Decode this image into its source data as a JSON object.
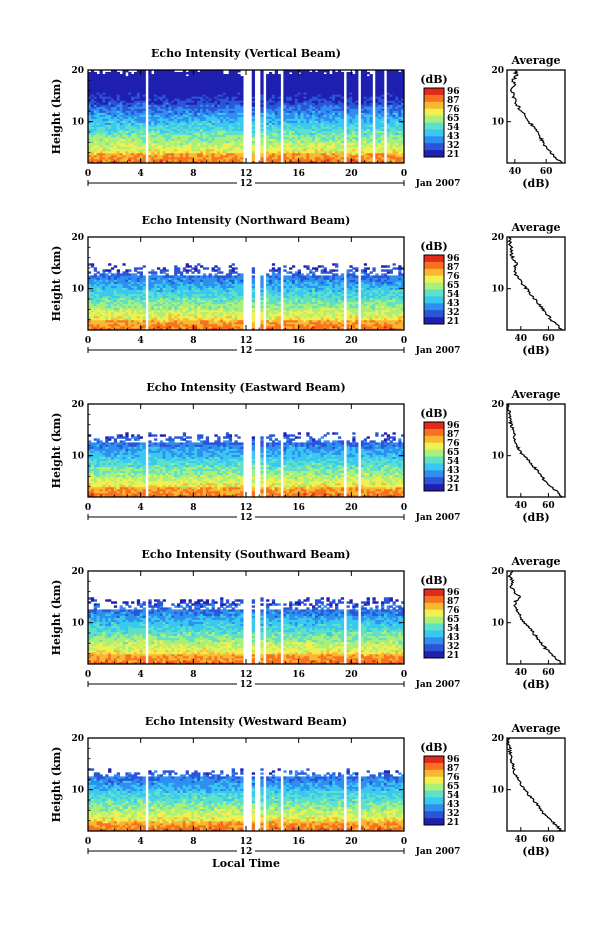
{
  "figure": {
    "xaxis_label": "Local Time",
    "colorbar_unit": "(dB)",
    "colorbar_ticks": [
      "96",
      "87",
      "76",
      "65",
      "54",
      "43",
      "32",
      "21"
    ],
    "date_label": "Jan 2007",
    "day_marker": "12",
    "avg_title": "Average",
    "avg_xlabel": "(dB)",
    "height_label": "Height (km)",
    "colormap": [
      "#1f1fb0",
      "#2a55d8",
      "#2f8ff0",
      "#39c8f0",
      "#5fe0c8",
      "#a8f07a",
      "#f0f050",
      "#f8b830",
      "#f87020",
      "#e02a1a"
    ]
  },
  "chart_data": [
    {
      "type": "heatmap",
      "title": "Echo Intensity (Vertical Beam)",
      "x_ticks": [
        "0",
        "4",
        "8",
        "12",
        "16",
        "20",
        "0"
      ],
      "x_range": [
        0,
        24
      ],
      "y_ticks": [
        "20",
        "10"
      ],
      "y_range": [
        2,
        20
      ],
      "ylabel": "Height (km)",
      "z_range": [
        21,
        96
      ],
      "top_km": 19.5,
      "data_gaps_hours": [
        [
          4.3,
          4.6
        ],
        [
          11.7,
          12.4
        ],
        [
          12.7,
          13.0
        ],
        [
          13.4,
          13.6
        ],
        [
          14.7,
          14.9
        ],
        [
          19.4,
          19.6
        ],
        [
          20.5,
          20.7
        ],
        [
          21.6,
          21.8
        ],
        [
          22.4,
          22.6
        ]
      ],
      "average_profile": {
        "title": "Average",
        "xlabel": "(dB)",
        "x_ticks": [
          "40",
          "60"
        ],
        "x_range": [
          35,
          72
        ],
        "y_ticks": [
          "20",
          "10"
        ],
        "height_km": [
          2,
          3,
          4,
          5,
          6,
          7,
          8,
          9,
          10,
          11,
          12,
          13,
          14,
          15,
          16,
          17,
          18,
          19,
          20
        ],
        "db": [
          70,
          66,
          63,
          60,
          58,
          56,
          54,
          52,
          49,
          47,
          44,
          42,
          40,
          39,
          38,
          40,
          39,
          41,
          40
        ]
      }
    },
    {
      "type": "heatmap",
      "title": "Echo Intensity (Northward Beam)",
      "x_ticks": [
        "0",
        "4",
        "8",
        "12",
        "16",
        "20",
        "0"
      ],
      "x_range": [
        0,
        24
      ],
      "y_ticks": [
        "20",
        "10"
      ],
      "y_range": [
        2,
        20
      ],
      "ylabel": "Height (km)",
      "z_range": [
        21,
        96
      ],
      "top_km": 14.5,
      "data_gaps_hours": [
        [
          4.3,
          4.6
        ],
        [
          11.7,
          12.4
        ],
        [
          12.7,
          13.0
        ],
        [
          13.4,
          13.6
        ],
        [
          14.7,
          14.9
        ],
        [
          19.4,
          19.6
        ],
        [
          20.5,
          20.7
        ]
      ],
      "average_profile": {
        "title": "Average",
        "xlabel": "(dB)",
        "x_ticks": [
          "40",
          "60"
        ],
        "x_range": [
          30,
          72
        ],
        "y_ticks": [
          "20",
          "10"
        ],
        "height_km": [
          2,
          3,
          4,
          5,
          6,
          7,
          8,
          9,
          10,
          11,
          12,
          13,
          14,
          15,
          16,
          17,
          18,
          19,
          20
        ],
        "db": [
          70,
          66,
          62,
          59,
          56,
          53,
          50,
          47,
          44,
          41,
          38,
          36,
          35,
          37,
          34,
          33,
          33,
          32,
          32
        ]
      }
    },
    {
      "type": "heatmap",
      "title": "Echo Intensity (Eastward Beam)",
      "x_ticks": [
        "0",
        "4",
        "8",
        "12",
        "16",
        "20",
        "0"
      ],
      "x_range": [
        0,
        24
      ],
      "y_ticks": [
        "20",
        "10"
      ],
      "y_range": [
        2,
        20
      ],
      "ylabel": "Height (km)",
      "z_range": [
        21,
        96
      ],
      "top_km": 14.0,
      "data_gaps_hours": [
        [
          4.3,
          4.6
        ],
        [
          11.7,
          12.4
        ],
        [
          12.7,
          13.0
        ],
        [
          13.4,
          13.6
        ],
        [
          14.7,
          14.9
        ],
        [
          19.4,
          19.6
        ],
        [
          20.5,
          20.7
        ]
      ],
      "average_profile": {
        "title": "Average",
        "xlabel": "(dB)",
        "x_ticks": [
          "40",
          "60"
        ],
        "x_range": [
          30,
          72
        ],
        "y_ticks": [
          "20",
          "10"
        ],
        "height_km": [
          2,
          3,
          4,
          5,
          6,
          7,
          8,
          9,
          10,
          11,
          12,
          13,
          14,
          15,
          16,
          17,
          18,
          19,
          20
        ],
        "db": [
          70,
          66,
          62,
          58,
          55,
          52,
          49,
          46,
          42,
          39,
          37,
          36,
          35,
          34,
          33,
          32,
          32,
          31,
          31
        ]
      }
    },
    {
      "type": "heatmap",
      "title": "Echo Intensity (Southward Beam)",
      "x_ticks": [
        "0",
        "4",
        "8",
        "12",
        "16",
        "20",
        "0"
      ],
      "x_range": [
        0,
        24
      ],
      "y_ticks": [
        "20",
        "10"
      ],
      "y_range": [
        2,
        20
      ],
      "ylabel": "Height (km)",
      "z_range": [
        21,
        96
      ],
      "top_km": 14.5,
      "data_gaps_hours": [
        [
          4.3,
          4.6
        ],
        [
          11.7,
          12.4
        ],
        [
          12.7,
          13.0
        ],
        [
          13.4,
          13.6
        ],
        [
          14.7,
          14.9
        ],
        [
          19.4,
          19.6
        ],
        [
          20.5,
          20.7
        ]
      ],
      "average_profile": {
        "title": "Average",
        "xlabel": "(dB)",
        "x_ticks": [
          "40",
          "60"
        ],
        "x_range": [
          30,
          72
        ],
        "y_ticks": [
          "20",
          "10"
        ],
        "height_km": [
          2,
          3,
          4,
          5,
          6,
          7,
          8,
          9,
          10,
          11,
          12,
          13,
          14,
          15,
          16,
          17,
          18,
          19,
          20
        ],
        "db": [
          70,
          66,
          62,
          58,
          55,
          52,
          49,
          46,
          43,
          40,
          38,
          36,
          36,
          39,
          35,
          33,
          34,
          32,
          33
        ]
      }
    },
    {
      "type": "heatmap",
      "title": "Echo Intensity (Westward Beam)",
      "x_ticks": [
        "0",
        "4",
        "8",
        "12",
        "16",
        "20",
        "0"
      ],
      "x_range": [
        0,
        24
      ],
      "y_ticks": [
        "20",
        "10"
      ],
      "y_range": [
        2,
        20
      ],
      "ylabel": "Height (km)",
      "z_range": [
        21,
        96
      ],
      "top_km": 13.5,
      "data_gaps_hours": [
        [
          4.3,
          4.6
        ],
        [
          11.7,
          12.4
        ],
        [
          12.7,
          13.0
        ],
        [
          13.4,
          13.6
        ],
        [
          14.7,
          14.9
        ],
        [
          19.4,
          19.6
        ],
        [
          20.5,
          20.7
        ]
      ],
      "average_profile": {
        "title": "Average",
        "xlabel": "(dB)",
        "x_ticks": [
          "40",
          "60"
        ],
        "x_range": [
          30,
          72
        ],
        "y_ticks": [
          "20",
          "10"
        ],
        "height_km": [
          2,
          3,
          4,
          5,
          6,
          7,
          8,
          9,
          10,
          11,
          12,
          13,
          14,
          15,
          16,
          17,
          18,
          19,
          20
        ],
        "db": [
          70,
          66,
          62,
          58,
          55,
          52,
          49,
          46,
          43,
          40,
          38,
          36,
          35,
          34,
          33,
          32,
          32,
          31,
          31
        ]
      }
    }
  ]
}
